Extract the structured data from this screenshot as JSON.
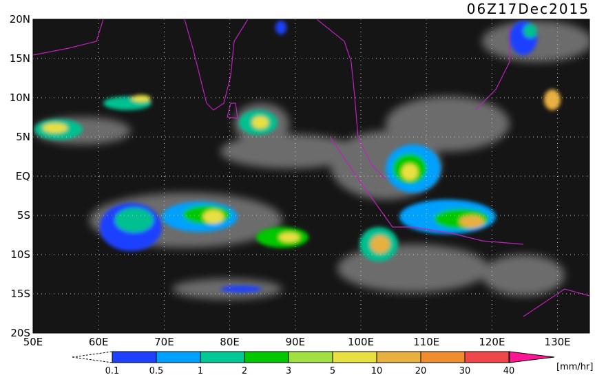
{
  "map": {
    "title": "06Z17Dec2015",
    "lat_labels": [
      "20N",
      "15N",
      "10N",
      "5N",
      "EQ",
      "5S",
      "10S",
      "15S",
      "20S"
    ],
    "lon_labels": [
      "50E",
      "60E",
      "70E",
      "80E",
      "90E",
      "100E",
      "110E",
      "120E",
      "130E"
    ],
    "colorbar": {
      "labels": [
        "0.1",
        "0.5",
        "1",
        "2",
        "3",
        "5",
        "10",
        "20",
        "30",
        "40"
      ],
      "unit": "[mm/hr]"
    }
  }
}
